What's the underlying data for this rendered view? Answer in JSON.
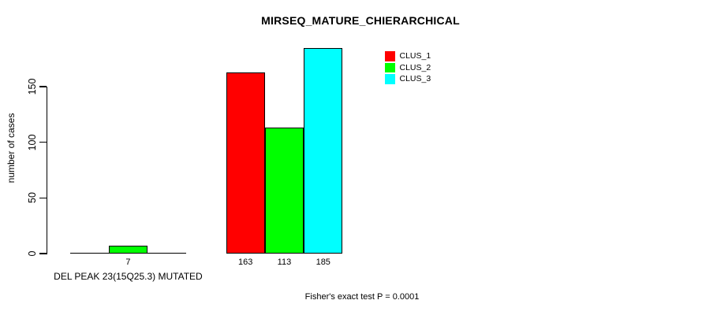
{
  "chart_data": {
    "type": "bar",
    "title": "MIRSEQ_MATURE_CHIERARCHICAL",
    "ylabel": "number of cases",
    "footnote": "Fisher's exact test P = 0.0001",
    "yticks": [
      0,
      50,
      100,
      150
    ],
    "ylim": [
      0,
      192
    ],
    "grid": false,
    "legend_position": "top-right",
    "categories": [
      "DEL PEAK 23(15Q25.3) MUTATED",
      ""
    ],
    "series": [
      {
        "name": "CLUS_1",
        "color": "#ff0000",
        "values": [
          0,
          163
        ]
      },
      {
        "name": "CLUS_2",
        "color": "#00ff00",
        "values": [
          7,
          113
        ]
      },
      {
        "name": "CLUS_3",
        "color": "#00ffff",
        "values": [
          0,
          185
        ]
      }
    ],
    "visible_bar_value_labels": [
      "7",
      "163",
      "113",
      "185"
    ],
    "axis_color": "#000000",
    "background_color": "#ffffff"
  }
}
